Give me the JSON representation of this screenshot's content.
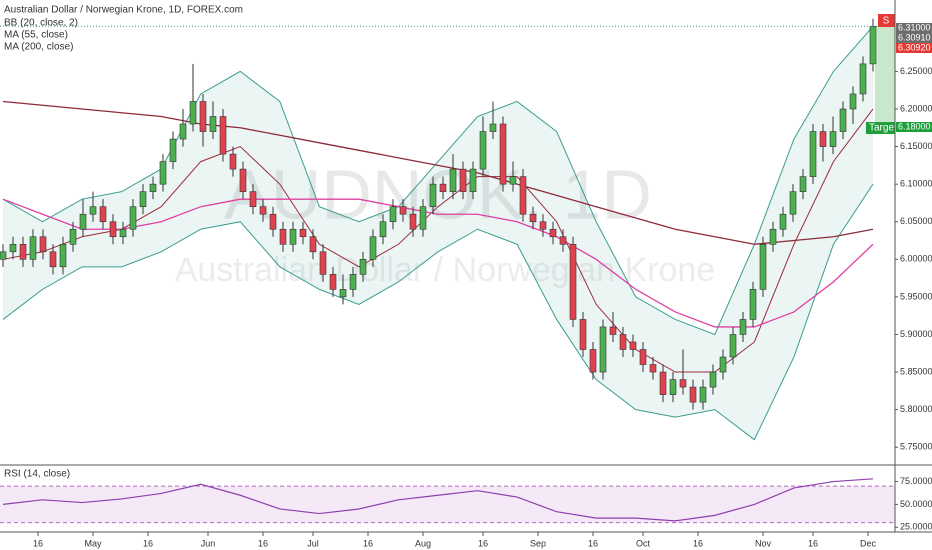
{
  "chart_data": [
    {
      "type": "candlestick",
      "title": "Australian Dollar / Norwegian Krone, 1D, FOREX.com",
      "watermark": "AUDNOK, 1D",
      "watermark_sub": "Australian Dollar / Norwegian Krone",
      "up_color": "#4caf50",
      "down_color": "#e0434f",
      "ylim": [
        5.729,
        6.345
      ],
      "yticks": [
        {
          "value": 5.75,
          "label": "5.75000"
        },
        {
          "value": 5.8,
          "label": "5.80000"
        },
        {
          "value": 5.85,
          "label": "5.85000"
        },
        {
          "value": 5.9,
          "label": "5.90000"
        },
        {
          "value": 5.95,
          "label": "5.95000"
        },
        {
          "value": 6.0,
          "label": "6.00000"
        },
        {
          "value": 6.05,
          "label": "6.05000"
        },
        {
          "value": 6.1,
          "label": "6.10000"
        },
        {
          "value": 6.15,
          "label": "6.15000"
        },
        {
          "value": 6.2,
          "label": "6.20000"
        },
        {
          "value": 6.25,
          "label": "6.25000"
        }
      ],
      "price_labels": [
        {
          "value": 6.31,
          "label": "6.31000",
          "color": "#6d6d6d"
        },
        {
          "value": 6.3091,
          "label": "6.30910",
          "color": "#6d6d6d"
        },
        {
          "value": 6.3092,
          "label": "6.30920",
          "color": "#e53935"
        },
        {
          "value": 6.18,
          "label": "6.18000",
          "color": "#1e9e3a"
        }
      ],
      "target_label": "Target",
      "stop_label": "S",
      "ohlc": [
        [
          6.0,
          6.02,
          5.99,
          6.01
        ],
        [
          6.01,
          6.03,
          6.0,
          6.02
        ],
        [
          6.02,
          6.03,
          5.99,
          6.0
        ],
        [
          6.0,
          6.04,
          5.99,
          6.03
        ],
        [
          6.03,
          6.04,
          6.0,
          6.01
        ],
        [
          6.01,
          6.02,
          5.98,
          5.99
        ],
        [
          5.99,
          6.03,
          5.98,
          6.02
        ],
        [
          6.02,
          6.05,
          6.01,
          6.04
        ],
        [
          6.04,
          6.08,
          6.03,
          6.06
        ],
        [
          6.06,
          6.09,
          6.05,
          6.07
        ],
        [
          6.07,
          6.08,
          6.04,
          6.05
        ],
        [
          6.05,
          6.06,
          6.02,
          6.03
        ],
        [
          6.03,
          6.05,
          6.02,
          6.04
        ],
        [
          6.04,
          6.08,
          6.03,
          6.07
        ],
        [
          6.07,
          6.1,
          6.06,
          6.09
        ],
        [
          6.09,
          6.11,
          6.08,
          6.1
        ],
        [
          6.1,
          6.14,
          6.09,
          6.13
        ],
        [
          6.13,
          6.17,
          6.12,
          6.16
        ],
        [
          6.16,
          6.2,
          6.15,
          6.18
        ],
        [
          6.18,
          6.26,
          6.17,
          6.21
        ],
        [
          6.21,
          6.22,
          6.15,
          6.17
        ],
        [
          6.17,
          6.21,
          6.16,
          6.19
        ],
        [
          6.19,
          6.2,
          6.13,
          6.14
        ],
        [
          6.14,
          6.15,
          6.11,
          6.12
        ],
        [
          6.12,
          6.13,
          6.08,
          6.09
        ],
        [
          6.09,
          6.1,
          6.06,
          6.07
        ],
        [
          6.07,
          6.08,
          6.05,
          6.06
        ],
        [
          6.06,
          6.07,
          6.03,
          6.04
        ],
        [
          6.04,
          6.05,
          6.01,
          6.02
        ],
        [
          6.02,
          6.05,
          6.01,
          6.04
        ],
        [
          6.04,
          6.05,
          6.02,
          6.03
        ],
        [
          6.03,
          6.04,
          6.0,
          6.01
        ],
        [
          6.01,
          6.02,
          5.97,
          5.98
        ],
        [
          5.98,
          5.99,
          5.95,
          5.96
        ],
        [
          5.95,
          5.98,
          5.94,
          5.96
        ],
        [
          5.96,
          5.99,
          5.95,
          5.98
        ],
        [
          5.98,
          6.01,
          5.97,
          6.0
        ],
        [
          6.0,
          6.04,
          5.99,
          6.03
        ],
        [
          6.03,
          6.06,
          6.02,
          6.05
        ],
        [
          6.05,
          6.08,
          6.04,
          6.07
        ],
        [
          6.07,
          6.08,
          6.05,
          6.06
        ],
        [
          6.06,
          6.07,
          6.03,
          6.04
        ],
        [
          6.04,
          6.08,
          6.03,
          6.07
        ],
        [
          6.07,
          6.11,
          6.06,
          6.1
        ],
        [
          6.1,
          6.11,
          6.08,
          6.09
        ],
        [
          6.09,
          6.14,
          6.08,
          6.12
        ],
        [
          6.12,
          6.13,
          6.08,
          6.09
        ],
        [
          6.09,
          6.13,
          6.08,
          6.12
        ],
        [
          6.12,
          6.19,
          6.11,
          6.17
        ],
        [
          6.17,
          6.21,
          6.16,
          6.18
        ],
        [
          6.18,
          6.19,
          6.09,
          6.1
        ],
        [
          6.1,
          6.13,
          6.09,
          6.11
        ],
        [
          6.11,
          6.12,
          6.05,
          6.06
        ],
        [
          6.06,
          6.07,
          6.04,
          6.05
        ],
        [
          6.05,
          6.06,
          6.03,
          6.04
        ],
        [
          6.04,
          6.05,
          6.02,
          6.03
        ],
        [
          6.03,
          6.04,
          6.01,
          6.02
        ],
        [
          6.02,
          6.03,
          5.91,
          5.92
        ],
        [
          5.92,
          5.93,
          5.87,
          5.88
        ],
        [
          5.88,
          5.89,
          5.84,
          5.85
        ],
        [
          5.85,
          5.92,
          5.84,
          5.91
        ],
        [
          5.91,
          5.93,
          5.89,
          5.9
        ],
        [
          5.9,
          5.91,
          5.87,
          5.88
        ],
        [
          5.89,
          5.9,
          5.87,
          5.88
        ],
        [
          5.88,
          5.89,
          5.85,
          5.86
        ],
        [
          5.86,
          5.87,
          5.84,
          5.85
        ],
        [
          5.85,
          5.86,
          5.81,
          5.82
        ],
        [
          5.82,
          5.85,
          5.81,
          5.84
        ],
        [
          5.84,
          5.88,
          5.82,
          5.83
        ],
        [
          5.83,
          5.84,
          5.8,
          5.81
        ],
        [
          5.81,
          5.84,
          5.8,
          5.83
        ],
        [
          5.83,
          5.86,
          5.82,
          5.85
        ],
        [
          5.85,
          5.88,
          5.84,
          5.87
        ],
        [
          5.87,
          5.91,
          5.86,
          5.9
        ],
        [
          5.9,
          5.93,
          5.89,
          5.92
        ],
        [
          5.92,
          5.97,
          5.91,
          5.96
        ],
        [
          5.96,
          6.03,
          5.95,
          6.02
        ],
        [
          6.02,
          6.05,
          6.01,
          6.04
        ],
        [
          6.04,
          6.07,
          6.03,
          6.06
        ],
        [
          6.06,
          6.1,
          6.05,
          6.09
        ],
        [
          6.09,
          6.12,
          6.08,
          6.11
        ],
        [
          6.11,
          6.18,
          6.1,
          6.17
        ],
        [
          6.17,
          6.18,
          6.13,
          6.15
        ],
        [
          6.15,
          6.19,
          6.14,
          6.17
        ],
        [
          6.17,
          6.21,
          6.16,
          6.2
        ],
        [
          6.2,
          6.23,
          6.18,
          6.22
        ],
        [
          6.22,
          6.27,
          6.21,
          6.26
        ],
        [
          6.26,
          6.32,
          6.25,
          6.31
        ]
      ],
      "indicators": [
        {
          "name": "BB (20, close, 2)",
          "color": "#3a9d8f",
          "basis_color": "#9c2a3a",
          "upper": [
            6.08,
            6.05,
            6.08,
            6.09,
            6.12,
            6.22,
            6.25,
            6.21,
            6.07,
            6.05,
            6.07,
            6.13,
            6.19,
            6.21,
            6.17,
            6.05,
            5.95,
            5.92,
            5.9,
            6.02,
            6.16,
            6.25,
            6.31
          ],
          "basis": [
            6.0,
            6.01,
            6.03,
            6.04,
            6.07,
            6.13,
            6.15,
            6.1,
            6.02,
            5.99,
            6.02,
            6.07,
            6.11,
            6.11,
            6.05,
            5.94,
            5.88,
            5.85,
            5.85,
            5.89,
            6.02,
            6.13,
            6.2
          ],
          "lower": [
            5.92,
            5.96,
            5.99,
            5.99,
            6.01,
            6.04,
            6.05,
            5.99,
            5.96,
            5.94,
            5.97,
            6.01,
            6.04,
            6.02,
            5.92,
            5.84,
            5.8,
            5.79,
            5.8,
            5.76,
            5.87,
            6.02,
            6.1
          ]
        },
        {
          "name": "MA (55, close)",
          "color": "#e040a0",
          "values": [
            6.08,
            6.06,
            6.04,
            6.04,
            6.05,
            6.07,
            6.08,
            6.08,
            6.08,
            6.08,
            6.07,
            6.06,
            6.06,
            6.05,
            6.03,
            6.0,
            5.96,
            5.93,
            5.91,
            5.91,
            5.93,
            5.97,
            6.02
          ]
        },
        {
          "name": "MA (200, close)",
          "color": "#8e2a3a",
          "values": [
            6.21,
            6.205,
            6.2,
            6.195,
            6.19,
            6.18,
            6.175,
            6.165,
            6.155,
            6.145,
            6.135,
            6.125,
            6.115,
            6.1,
            6.085,
            6.07,
            6.055,
            6.04,
            6.03,
            6.02,
            6.025,
            6.03,
            6.04
          ]
        }
      ]
    },
    {
      "type": "line",
      "title": "RSI (14, close)",
      "color": "#8e3fae",
      "ylim": [
        22,
        92
      ],
      "yticks": [
        {
          "value": 25,
          "label": "25.0000"
        },
        {
          "value": 50,
          "label": "50.0000"
        },
        {
          "value": 75,
          "label": "75.0000"
        }
      ],
      "band": [
        30,
        70
      ],
      "values": [
        50,
        55,
        52,
        56,
        62,
        72,
        60,
        45,
        40,
        45,
        55,
        60,
        65,
        58,
        42,
        35,
        35,
        32,
        38,
        50,
        68,
        75,
        78
      ],
      "xticks": [
        {
          "value": 3.5,
          "label": "16"
        },
        {
          "value": 9,
          "label": "May"
        },
        {
          "value": 14.5,
          "label": "16"
        },
        {
          "value": 20.5,
          "label": "Jun"
        },
        {
          "value": 26,
          "label": "16"
        },
        {
          "value": 31,
          "label": "Jul"
        },
        {
          "value": 36.5,
          "label": "16"
        },
        {
          "value": 42,
          "label": "Aug"
        },
        {
          "value": 48,
          "label": "16"
        },
        {
          "value": 53.5,
          "label": "Sep"
        },
        {
          "value": 59,
          "label": "16"
        },
        {
          "value": 64,
          "label": "Oct"
        },
        {
          "value": 69.5,
          "label": "16"
        },
        {
          "value": 76,
          "label": "Nov"
        },
        {
          "value": 81,
          "label": "16"
        },
        {
          "value": 86.5,
          "label": "Dec"
        }
      ]
    }
  ]
}
